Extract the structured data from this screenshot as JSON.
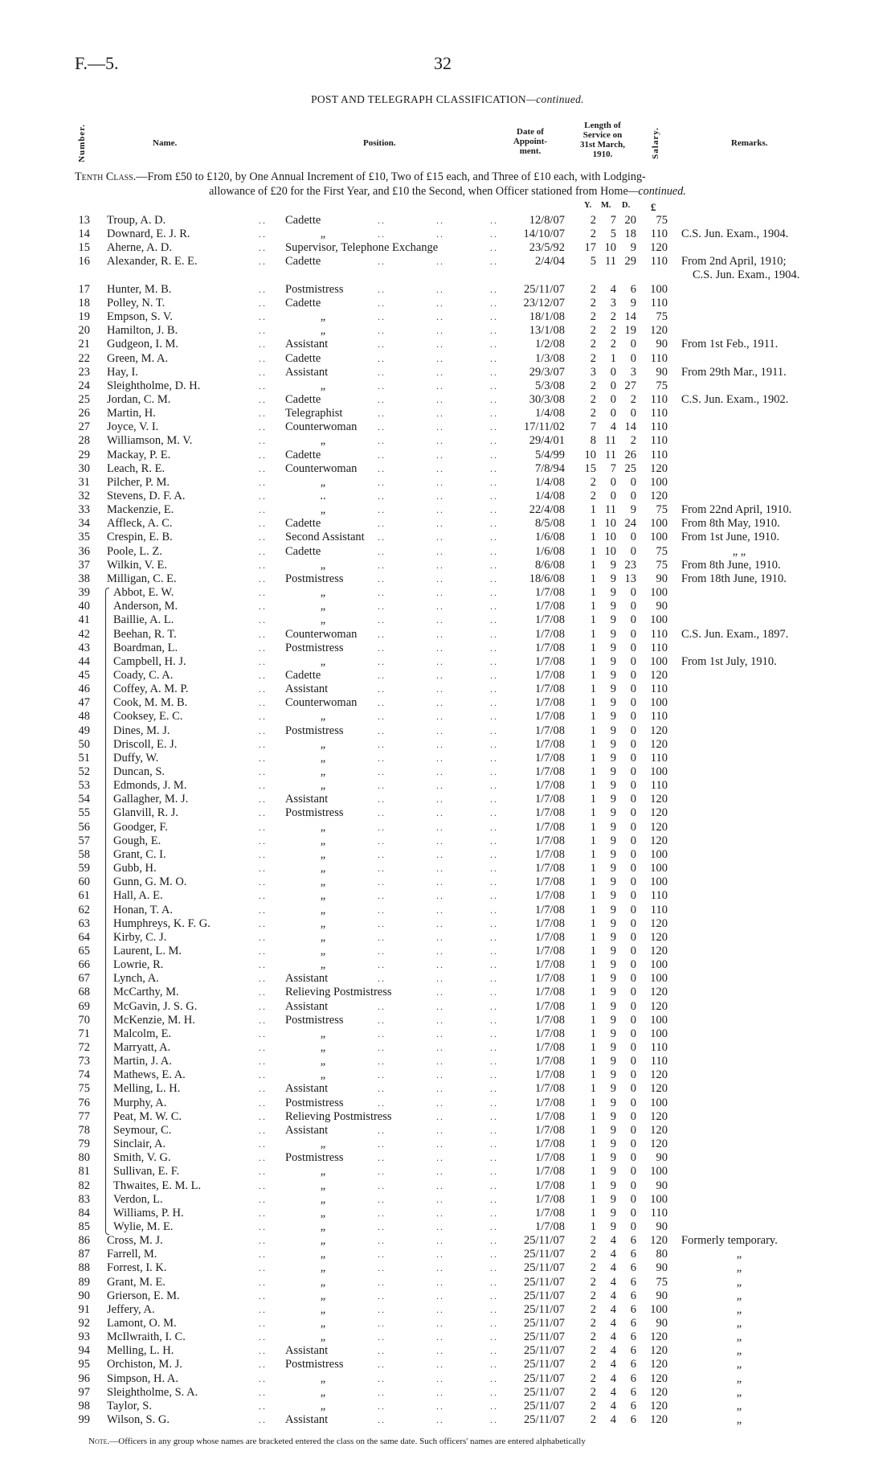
{
  "page": {
    "reference": "F.—5.",
    "number": "32"
  },
  "title": {
    "main": "POST AND TELEGRAPH CLASSIFICATION",
    "suffix": "—continued."
  },
  "columns": {
    "number": "Number.",
    "name": "Name.",
    "position": "Position.",
    "date": [
      "Date of",
      "Appoint-",
      "ment."
    ],
    "service": [
      "Length of",
      "Service on",
      "31st March,",
      "1910."
    ],
    "salary": "Salary.",
    "remarks": "Remarks."
  },
  "class_heading": {
    "label": "Tenth Class.",
    "line1": "—From £50 to £120, by One Annual Increment of £10, Two of £15 each, and Three of £10 each, with Lodging-",
    "line2": "allowance of £20 for the First Year, and £10 the Second, when Officer stationed from Home",
    "line2_suffix": "—continued."
  },
  "units": {
    "years": "Y.",
    "months": "M.",
    "days": "D.",
    "salary": "£"
  },
  "bracket_group": [
    39,
    85
  ],
  "rows": [
    [
      "13",
      "Troup, A. D.",
      "Cadette",
      "12/8/07",
      "2",
      "7",
      "20",
      "75",
      ""
    ],
    [
      "14",
      "Downard, E. J. R.",
      "„",
      "14/10/07",
      "2",
      "5",
      "18",
      "110",
      "C.S. Jun. Exam., 1904."
    ],
    [
      "15",
      "Aherne, A. D.",
      "Supervisor, Telephone Exchange",
      "23/5/92",
      "17",
      "10",
      "9",
      "120",
      ""
    ],
    [
      "16",
      "Alexander, R. E. E.",
      "Cadette",
      "2/4/04",
      "5",
      "11",
      "29",
      "110",
      "From 2nd April, 1910;",
      "C.S. Jun. Exam., 1904."
    ],
    [
      "17",
      "Hunter, M. B.",
      "Postmistress",
      "25/11/07",
      "2",
      "4",
      "6",
      "100",
      ""
    ],
    [
      "18",
      "Polley, N. T.",
      "Cadette",
      "23/12/07",
      "2",
      "3",
      "9",
      "110",
      ""
    ],
    [
      "19",
      "Empson, S. V.",
      "„",
      "18/1/08",
      "2",
      "2",
      "14",
      "75",
      ""
    ],
    [
      "20",
      "Hamilton, J. B.",
      "„",
      "13/1/08",
      "2",
      "2",
      "19",
      "120",
      ""
    ],
    [
      "21",
      "Gudgeon, I. M.",
      "Assistant",
      "1/2/08",
      "2",
      "2",
      "0",
      "90",
      "From 1st Feb., 1911."
    ],
    [
      "22",
      "Green, M. A.",
      "Cadette",
      "1/3/08",
      "2",
      "1",
      "0",
      "110",
      ""
    ],
    [
      "23",
      "Hay, I.",
      "Assistant",
      "29/3/07",
      "3",
      "0",
      "3",
      "90",
      "From 29th Mar., 1911."
    ],
    [
      "24",
      "Sleightholme, D. H.",
      "„",
      "5/3/08",
      "2",
      "0",
      "27",
      "75",
      ""
    ],
    [
      "25",
      "Jordan, C. M.",
      "Cadette",
      "30/3/08",
      "2",
      "0",
      "2",
      "110",
      "C.S. Jun. Exam., 1902."
    ],
    [
      "26",
      "Martin, H.",
      "Telegraphist",
      "1/4/08",
      "2",
      "0",
      "0",
      "110",
      ""
    ],
    [
      "27",
      "Joyce, V. I.",
      "Counterwoman",
      "17/11/02",
      "7",
      "4",
      "14",
      "110",
      ""
    ],
    [
      "28",
      "Williamson, M. V.",
      "„",
      "29/4/01",
      "8",
      "11",
      "2",
      "110",
      ""
    ],
    [
      "29",
      "Mackay, P. E.",
      "Cadette",
      "5/4/99",
      "10",
      "11",
      "26",
      "110",
      ""
    ],
    [
      "30",
      "Leach, R. E.",
      "Counterwoman",
      "7/8/94",
      "15",
      "7",
      "25",
      "120",
      ""
    ],
    [
      "31",
      "Pilcher, P. M.",
      "„",
      "1/4/08",
      "2",
      "0",
      "0",
      "100",
      ""
    ],
    [
      "32",
      "Stevens, D. F. A.",
      "..",
      "1/4/08",
      "2",
      "0",
      "0",
      "120",
      ""
    ],
    [
      "33",
      "Mackenzie, E.",
      "„",
      "22/4/08",
      "1",
      "11",
      "9",
      "75",
      "From 22nd April, 1910."
    ],
    [
      "34",
      "Affleck, A. C.",
      "Cadette",
      "8/5/08",
      "1",
      "10",
      "24",
      "100",
      "From 8th May, 1910."
    ],
    [
      "35",
      "Crespin, E. B.",
      "Second Assistant",
      "1/6/08",
      "1",
      "10",
      "0",
      "100",
      "From 1st June, 1910."
    ],
    [
      "36",
      "Poole, L. Z.",
      "Cadette",
      "1/6/08",
      "1",
      "10",
      "0",
      "75",
      "„      „"
    ],
    [
      "37",
      "Wilkin, V. E.",
      "„",
      "8/6/08",
      "1",
      "9",
      "23",
      "75",
      "From 8th June, 1910."
    ],
    [
      "38",
      "Milligan, C. E.",
      "Postmistress",
      "18/6/08",
      "1",
      "9",
      "13",
      "90",
      "From 18th June, 1910."
    ],
    [
      "39",
      "Abbot, E. W.",
      "„",
      "1/7/08",
      "1",
      "9",
      "0",
      "100",
      ""
    ],
    [
      "40",
      "Anderson, M.",
      "„",
      "1/7/08",
      "1",
      "9",
      "0",
      "90",
      ""
    ],
    [
      "41",
      "Baillie, A. L.",
      "„",
      "1/7/08",
      "1",
      "9",
      "0",
      "100",
      ""
    ],
    [
      "42",
      "Beehan, R. T.",
      "Counterwoman",
      "1/7/08",
      "1",
      "9",
      "0",
      "110",
      "C.S. Jun. Exam., 1897."
    ],
    [
      "43",
      "Boardman, L.",
      "Postmistress",
      "1/7/08",
      "1",
      "9",
      "0",
      "110",
      ""
    ],
    [
      "44",
      "Campbell, H. J.",
      "„",
      "1/7/08",
      "1",
      "9",
      "0",
      "100",
      "From 1st July, 1910."
    ],
    [
      "45",
      "Coady, C. A.",
      "Cadette",
      "1/7/08",
      "1",
      "9",
      "0",
      "120",
      ""
    ],
    [
      "46",
      "Coffey, A. M. P.",
      "Assistant",
      "1/7/08",
      "1",
      "9",
      "0",
      "110",
      ""
    ],
    [
      "47",
      "Cook, M. M. B.",
      "Counterwoman",
      "1/7/08",
      "1",
      "9",
      "0",
      "100",
      ""
    ],
    [
      "48",
      "Cooksey, E. C.",
      "„",
      "1/7/08",
      "1",
      "9",
      "0",
      "110",
      ""
    ],
    [
      "49",
      "Dines, M. J.",
      "Postmistress",
      "1/7/08",
      "1",
      "9",
      "0",
      "120",
      ""
    ],
    [
      "50",
      "Driscoll, E. J.",
      "„",
      "1/7/08",
      "1",
      "9",
      "0",
      "120",
      ""
    ],
    [
      "51",
      "Duffy, W.",
      "„",
      "1/7/08",
      "1",
      "9",
      "0",
      "110",
      ""
    ],
    [
      "52",
      "Duncan, S.",
      "„",
      "1/7/08",
      "1",
      "9",
      "0",
      "100",
      ""
    ],
    [
      "53",
      "Edmonds, J. M.",
      "„",
      "1/7/08",
      "1",
      "9",
      "0",
      "110",
      ""
    ],
    [
      "54",
      "Gallagher, M. J.",
      "Assistant",
      "1/7/08",
      "1",
      "9",
      "0",
      "120",
      ""
    ],
    [
      "55",
      "Glanvill, R. J.",
      "Postmistress",
      "1/7/08",
      "1",
      "9",
      "0",
      "120",
      ""
    ],
    [
      "56",
      "Goodger, F.",
      "„",
      "1/7/08",
      "1",
      "9",
      "0",
      "120",
      ""
    ],
    [
      "57",
      "Gough, E.",
      "„",
      "1/7/08",
      "1",
      "9",
      "0",
      "120",
      ""
    ],
    [
      "58",
      "Grant, C. I.",
      "„",
      "1/7/08",
      "1",
      "9",
      "0",
      "100",
      ""
    ],
    [
      "59",
      "Gubb, H.",
      "„",
      "1/7/08",
      "1",
      "9",
      "0",
      "100",
      ""
    ],
    [
      "60",
      "Gunn, G. M. O.",
      "„",
      "1/7/08",
      "1",
      "9",
      "0",
      "100",
      ""
    ],
    [
      "61",
      "Hall, A. E.",
      "„",
      "1/7/08",
      "1",
      "9",
      "0",
      "110",
      ""
    ],
    [
      "62",
      "Honan, T. A.",
      "„",
      "1/7/08",
      "1",
      "9",
      "0",
      "110",
      ""
    ],
    [
      "63",
      "Humphreys, K. F. G.",
      "„",
      "1/7/08",
      "1",
      "9",
      "0",
      "120",
      ""
    ],
    [
      "64",
      "Kirby, C. J.",
      "„",
      "1/7/08",
      "1",
      "9",
      "0",
      "120",
      ""
    ],
    [
      "65",
      "Laurent, L. M.",
      "„",
      "1/7/08",
      "1",
      "9",
      "0",
      "120",
      ""
    ],
    [
      "66",
      "Lowrie, R.",
      "„",
      "1/7/08",
      "1",
      "9",
      "0",
      "100",
      ""
    ],
    [
      "67",
      "Lynch, A.",
      "Assistant",
      "1/7/08",
      "1",
      "9",
      "0",
      "100",
      ""
    ],
    [
      "68",
      "McCarthy, M.",
      "Relieving Postmistress",
      "1/7/08",
      "1",
      "9",
      "0",
      "120",
      ""
    ],
    [
      "69",
      "McGavin, J. S. G.",
      "Assistant",
      "1/7/08",
      "1",
      "9",
      "0",
      "120",
      ""
    ],
    [
      "70",
      "McKenzie, M. H.",
      "Postmistress",
      "1/7/08",
      "1",
      "9",
      "0",
      "100",
      ""
    ],
    [
      "71",
      "Malcolm, E.",
      "„",
      "1/7/08",
      "1",
      "9",
      "0",
      "100",
      ""
    ],
    [
      "72",
      "Marryatt, A.",
      "„",
      "1/7/08",
      "1",
      "9",
      "0",
      "110",
      ""
    ],
    [
      "73",
      "Martin, J. A.",
      "„",
      "1/7/08",
      "1",
      "9",
      "0",
      "110",
      ""
    ],
    [
      "74",
      "Mathews, E. A.",
      "„",
      "1/7/08",
      "1",
      "9",
      "0",
      "120",
      ""
    ],
    [
      "75",
      "Melling, L. H.",
      "Assistant",
      "1/7/08",
      "1",
      "9",
      "0",
      "120",
      ""
    ],
    [
      "76",
      "Murphy, A.",
      "Postmistress",
      "1/7/08",
      "1",
      "9",
      "0",
      "100",
      ""
    ],
    [
      "77",
      "Peat, M. W. C.",
      "Relieving Postmistress",
      "1/7/08",
      "1",
      "9",
      "0",
      "120",
      ""
    ],
    [
      "78",
      "Seymour, C.",
      "Assistant",
      "1/7/08",
      "1",
      "9",
      "0",
      "120",
      ""
    ],
    [
      "79",
      "Sinclair, A.",
      "„",
      "1/7/08",
      "1",
      "9",
      "0",
      "120",
      ""
    ],
    [
      "80",
      "Smith, V. G.",
      "Postmistress",
      "1/7/08",
      "1",
      "9",
      "0",
      "90",
      ""
    ],
    [
      "81",
      "Sullivan, E. F.",
      "„",
      "1/7/08",
      "1",
      "9",
      "0",
      "100",
      ""
    ],
    [
      "82",
      "Thwaites, E. M. L.",
      "„",
      "1/7/08",
      "1",
      "9",
      "0",
      "90",
      ""
    ],
    [
      "83",
      "Verdon, L.",
      "„",
      "1/7/08",
      "1",
      "9",
      "0",
      "100",
      ""
    ],
    [
      "84",
      "Williams, P. H.",
      "„",
      "1/7/08",
      "1",
      "9",
      "0",
      "110",
      ""
    ],
    [
      "85",
      "Wylie, M. E.",
      "„",
      "1/7/08",
      "1",
      "9",
      "0",
      "90",
      ""
    ],
    [
      "86",
      "Cross, M. J.",
      "„",
      "25/11/07",
      "2",
      "4",
      "6",
      "120",
      "Formerly temporary."
    ],
    [
      "87",
      "Farrell, M.",
      "„",
      "25/11/07",
      "2",
      "4",
      "6",
      "80",
      "„"
    ],
    [
      "88",
      "Forrest, I. K.",
      "„",
      "25/11/07",
      "2",
      "4",
      "6",
      "90",
      "„"
    ],
    [
      "89",
      "Grant, M. E.",
      "„",
      "25/11/07",
      "2",
      "4",
      "6",
      "75",
      "„"
    ],
    [
      "90",
      "Grierson, E. M.",
      "„",
      "25/11/07",
      "2",
      "4",
      "6",
      "90",
      "„"
    ],
    [
      "91",
      "Jeffery, A.",
      "„",
      "25/11/07",
      "2",
      "4",
      "6",
      "100",
      "„"
    ],
    [
      "92",
      "Lamont, O. M.",
      "„",
      "25/11/07",
      "2",
      "4",
      "6",
      "90",
      "„"
    ],
    [
      "93",
      "McIlwraith, I. C.",
      "„",
      "25/11/07",
      "2",
      "4",
      "6",
      "120",
      "„"
    ],
    [
      "94",
      "Melling, L. H.",
      "Assistant",
      "25/11/07",
      "2",
      "4",
      "6",
      "120",
      "„"
    ],
    [
      "95",
      "Orchiston, M. J.",
      "Postmistress",
      "25/11/07",
      "2",
      "4",
      "6",
      "120",
      "„"
    ],
    [
      "96",
      "Simpson, H. A.",
      "„",
      "25/11/07",
      "2",
      "4",
      "6",
      "120",
      "„"
    ],
    [
      "97",
      "Sleightholme, S. A.",
      "„",
      "25/11/07",
      "2",
      "4",
      "6",
      "120",
      "„"
    ],
    [
      "98",
      "Taylor, S.",
      "„",
      "25/11/07",
      "2",
      "4",
      "6",
      "120",
      "„"
    ],
    [
      "99",
      "Wilson, S. G.",
      "Assistant",
      "25/11/07",
      "2",
      "4",
      "6",
      "120",
      "„"
    ]
  ],
  "note": {
    "label": "Note.",
    "text": "—Officers in any group whose names are bracketed entered the class on the same date.  Such officers' names are entered alphabetically"
  }
}
